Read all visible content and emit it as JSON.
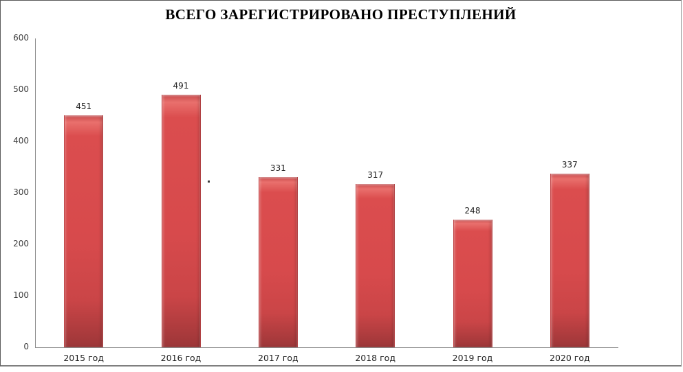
{
  "chart_data": {
    "type": "bar",
    "title": "ВСЕГО ЗАРЕГИСТРИРОВАНО ПРЕСТУПЛЕНИЙ",
    "categories": [
      "2015 год",
      "2016 год",
      "2017 год",
      "2018 год",
      "2019 год",
      "2020 год"
    ],
    "values": [
      451,
      491,
      331,
      317,
      248,
      337
    ],
    "data_labels": [
      "451",
      "491",
      "331",
      "317",
      "248",
      "337"
    ],
    "xlabel": "",
    "ylabel": "",
    "ylim": [
      0,
      600
    ],
    "yticks": [
      0,
      100,
      200,
      300,
      400,
      500,
      600
    ],
    "grid": false,
    "legend": "none",
    "bar_color": "#d74a4c",
    "bar_highlight_color": "#e9706d",
    "bar_shadow_color": "#9c3638",
    "axis_color": "#8c8c8c",
    "label_color": "#212121",
    "annotations": [
      {
        "text": "."
      }
    ]
  },
  "frame": {
    "background": "#ffffff",
    "border_dark": "#595959",
    "border_light": "#9c9c9c",
    "bottom_rule": "#7f7f7f"
  }
}
